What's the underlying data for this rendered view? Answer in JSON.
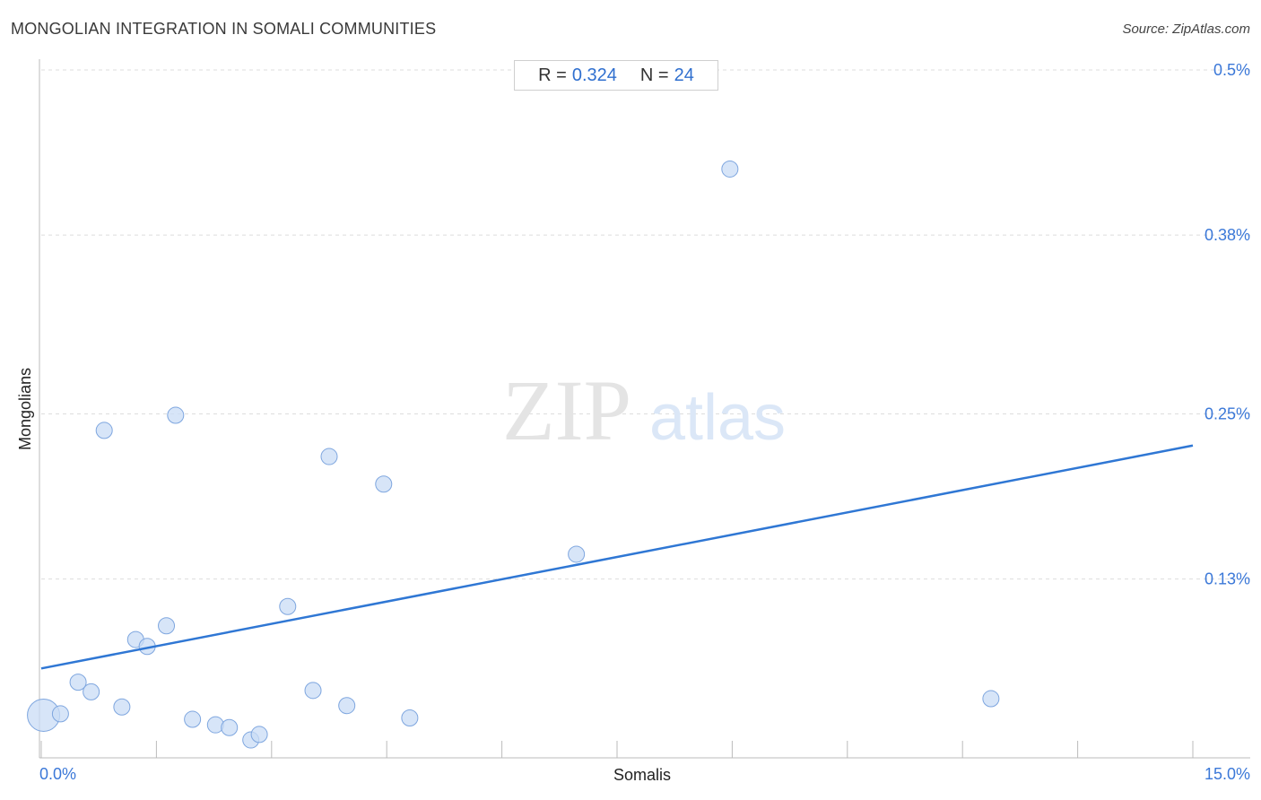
{
  "header": {
    "title": "MONGOLIAN INTEGRATION IN SOMALI COMMUNITIES",
    "source": "Source: ZipAtlas.com"
  },
  "stats": {
    "r_label": "R =",
    "r_value": "0.324",
    "n_label": "N =",
    "n_value": "24"
  },
  "watermark": {
    "zip": "ZIP",
    "atlas": "atlas"
  },
  "colors": {
    "point_fill": "#c9dcf5",
    "point_stroke": "#7ea6df",
    "trend_line": "#2f77d4",
    "tick_label": "#3b78d8"
  },
  "chart_data": {
    "type": "scatter",
    "title": "MONGOLIAN INTEGRATION IN SOMALI COMMUNITIES",
    "xlabel": "Somalis",
    "ylabel": "Mongolians",
    "xlim": [
      0,
      15
    ],
    "ylim": [
      0,
      0.5
    ],
    "x_tick_labels": [
      "0.0%",
      "15.0%"
    ],
    "y_ticks": [
      {
        "value": 0.5,
        "label": "0.5%"
      },
      {
        "value": 0.38,
        "label": "0.38%"
      },
      {
        "value": 0.25,
        "label": "0.25%"
      },
      {
        "value": 0.13,
        "label": "0.13%"
      }
    ],
    "grid": true,
    "points": [
      {
        "x": 0.03,
        "y": 0.031,
        "large": true
      },
      {
        "x": 0.25,
        "y": 0.032
      },
      {
        "x": 0.48,
        "y": 0.055
      },
      {
        "x": 0.65,
        "y": 0.048
      },
      {
        "x": 0.82,
        "y": 0.238
      },
      {
        "x": 1.05,
        "y": 0.037
      },
      {
        "x": 1.23,
        "y": 0.086
      },
      {
        "x": 1.38,
        "y": 0.081
      },
      {
        "x": 1.63,
        "y": 0.096
      },
      {
        "x": 1.75,
        "y": 0.249
      },
      {
        "x": 1.97,
        "y": 0.028
      },
      {
        "x": 2.27,
        "y": 0.024
      },
      {
        "x": 2.45,
        "y": 0.022
      },
      {
        "x": 2.73,
        "y": 0.013
      },
      {
        "x": 2.84,
        "y": 0.017
      },
      {
        "x": 3.21,
        "y": 0.11
      },
      {
        "x": 3.54,
        "y": 0.049
      },
      {
        "x": 3.75,
        "y": 0.219
      },
      {
        "x": 3.98,
        "y": 0.038
      },
      {
        "x": 4.46,
        "y": 0.199
      },
      {
        "x": 4.8,
        "y": 0.029
      },
      {
        "x": 6.97,
        "y": 0.148
      },
      {
        "x": 8.97,
        "y": 0.428
      },
      {
        "x": 12.37,
        "y": 0.043
      }
    ],
    "trend_line": {
      "x": [
        0,
        15
      ],
      "y": [
        0.065,
        0.227
      ]
    }
  }
}
